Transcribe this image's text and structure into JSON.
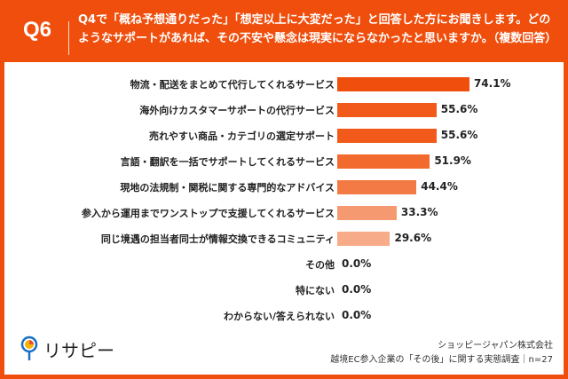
{
  "header": {
    "question_no": "Q6",
    "question": "Q4で「概ね予想通りだった」「想定以上に大変だった」と回答した方にお聞きします。どのようなサポートがあれば、その不安や懸念は現実にならなかったと思いますか。（複数回答）"
  },
  "chart_data": {
    "type": "bar",
    "orientation": "horizontal",
    "categories": [
      "物流・配送をまとめて代行してくれるサービス",
      "海外向けカスタマーサポートの代行サービス",
      "売れやすい商品・カテゴリの選定サポート",
      "言語・翻訳を一括でサポートしてくれるサービス",
      "現地の法規制・関税に関する専門的なアドバイス",
      "参入から運用までワンストップで支援してくれるサービス",
      "同じ境遇の担当者同士が情報交換できるコミュニティ",
      "その他",
      "特にない",
      "わからない/答えられない"
    ],
    "values": [
      74.1,
      55.6,
      55.6,
      51.9,
      44.4,
      33.3,
      29.6,
      0.0,
      0.0,
      0.0
    ],
    "value_labels": [
      "74.1%",
      "55.6%",
      "55.6%",
      "51.9%",
      "44.4%",
      "33.3%",
      "29.6%",
      "0.0%",
      "0.0%",
      "0.0%"
    ],
    "colors": [
      "#f04e0c",
      "#f15a1a",
      "#f15a1a",
      "#f26a2e",
      "#f37a44",
      "#f59a70",
      "#f7ab88",
      "#f7ab88",
      "#f7ab88",
      "#f7ab88"
    ],
    "xlim": [
      0,
      100
    ]
  },
  "footer": {
    "logo": "リサピー",
    "company": "ショッピージャパン株式会社",
    "survey": "越境EC参入企業の「その後」に関する実態調査｜n=27"
  }
}
